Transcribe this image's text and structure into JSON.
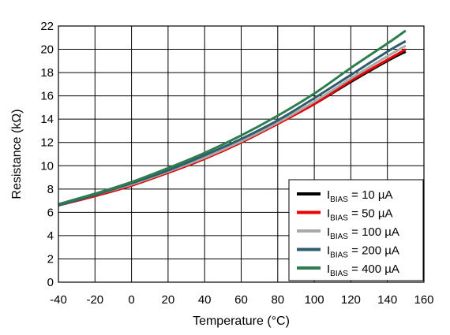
{
  "chart_data": {
    "type": "line",
    "title": "",
    "xlabel": "Temperature (°C)",
    "ylabel": "Resistance (kΩ)",
    "xlim": [
      -40,
      160
    ],
    "ylim": [
      0,
      22
    ],
    "xticks": [
      -40,
      -20,
      0,
      20,
      40,
      60,
      80,
      100,
      120,
      140,
      160
    ],
    "yticks": [
      0,
      2,
      4,
      6,
      8,
      10,
      12,
      14,
      16,
      18,
      20,
      22
    ],
    "grid": true,
    "legend_position": "bottom-right",
    "x": [
      -40,
      -20,
      0,
      20,
      40,
      60,
      80,
      100,
      120,
      140,
      150
    ],
    "series": [
      {
        "name": "IBIAS = 10 µA",
        "name_main": "I",
        "name_sub": "BIAS",
        "name_rest": " = 10 µA",
        "color": "#000000",
        "values": [
          6.6,
          7.4,
          8.3,
          9.4,
          10.6,
          12.0,
          13.6,
          15.3,
          17.2,
          19.0,
          19.8
        ]
      },
      {
        "name": "IBIAS = 50 µA",
        "name_main": "I",
        "name_sub": "BIAS",
        "name_rest": " = 50 µA",
        "color": "#ee0000",
        "values": [
          6.6,
          7.4,
          8.3,
          9.4,
          10.6,
          12.0,
          13.6,
          15.3,
          17.3,
          19.1,
          20.0
        ]
      },
      {
        "name": "IBIAS = 100 µA",
        "name_main": "I",
        "name_sub": "BIAS",
        "name_rest": " = 100 µA",
        "color": "#a9a9a9",
        "values": [
          6.6,
          7.5,
          8.4,
          9.5,
          10.7,
          12.1,
          13.7,
          15.5,
          17.5,
          19.4,
          20.3
        ]
      },
      {
        "name": "IBIAS = 200 µA",
        "name_main": "I",
        "name_sub": "BIAS",
        "name_rest": " = 200 µA",
        "color": "#2f5d6e",
        "values": [
          6.6,
          7.5,
          8.5,
          9.6,
          10.9,
          12.3,
          13.9,
          15.8,
          17.8,
          19.8,
          20.7
        ]
      },
      {
        "name": "IBIAS = 400 µA",
        "name_main": "I",
        "name_sub": "BIAS",
        "name_rest": " = 400 µA",
        "color": "#2e7d4f",
        "values": [
          6.7,
          7.6,
          8.6,
          9.8,
          11.1,
          12.6,
          14.3,
          16.2,
          18.4,
          20.5,
          21.6
        ]
      }
    ]
  }
}
